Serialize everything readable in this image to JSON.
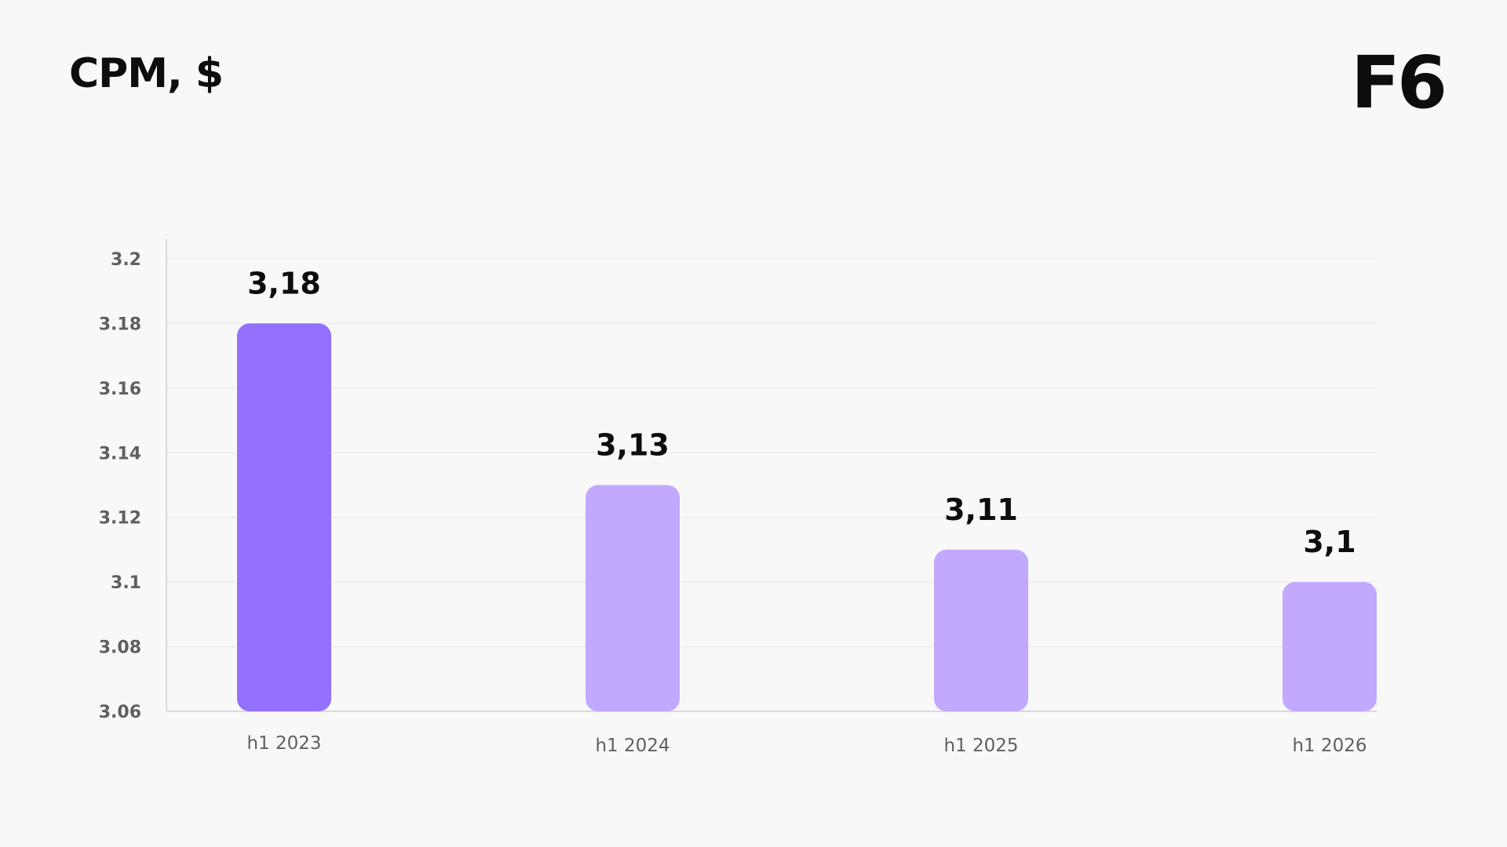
{
  "header": {
    "title": "CPM, $",
    "logo": "F6"
  },
  "colors": {
    "background": "#f8f8f8",
    "bar_highlight": "#9370ff",
    "bar_default": "#c0a9ff",
    "grid": "#e6e6e6",
    "axis": "#d9d9d9",
    "tick_text": "#5f5f5f",
    "value_text": "#0d0d0d"
  },
  "chart_data": {
    "type": "bar",
    "categories": [
      "h1 2023",
      "h1 2024",
      "h1 2025",
      "h1 2026"
    ],
    "values": [
      3.18,
      3.13,
      3.11,
      3.1
    ],
    "data_labels": [
      "3,18",
      "3,13",
      "3,11",
      "3,1"
    ],
    "highlight_index": 0,
    "title": "CPM, $",
    "xlabel": "",
    "ylabel": "",
    "ylim": [
      3.06,
      3.2
    ],
    "yticks": [
      3.2,
      3.18,
      3.16,
      3.14,
      3.12,
      3.1,
      3.08,
      3.06
    ],
    "ytick_labels": [
      "3.2",
      "3.18",
      "3.16",
      "3.14",
      "3.12",
      "3.1",
      "3.08",
      "3.06"
    ],
    "grid": true,
    "legend": false
  }
}
